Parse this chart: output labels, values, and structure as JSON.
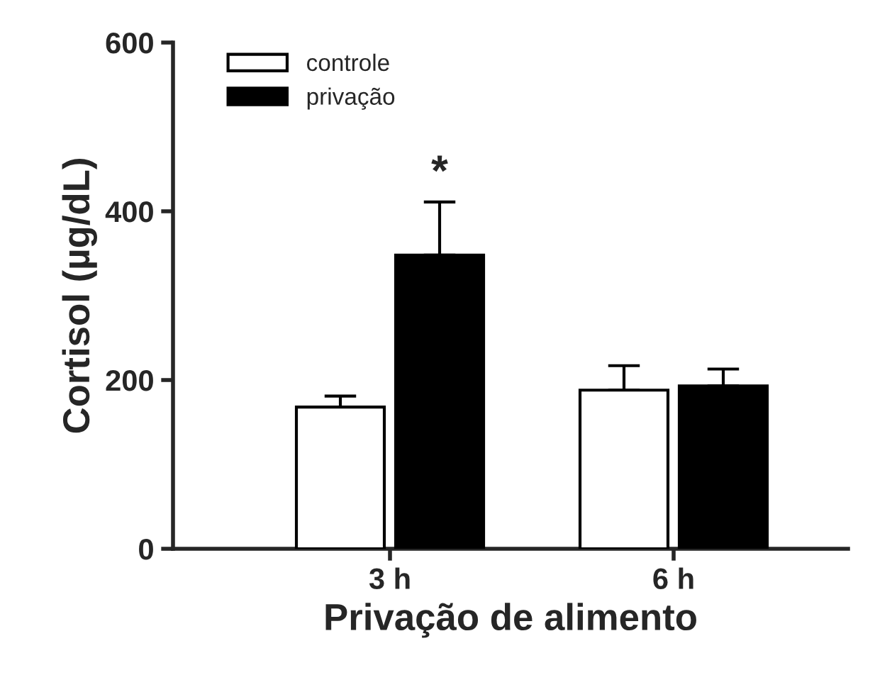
{
  "chart_data": {
    "type": "bar",
    "xlabel": "Privação de alimento",
    "ylabel": "Cortisol (µg/dL)",
    "categories": [
      "3 h",
      "6 h"
    ],
    "series": [
      {
        "name": "controle",
        "color": "#ffffff",
        "values": [
          168,
          188
        ],
        "errors": [
          [
            168,
            181
          ],
          [
            188,
            217
          ]
        ]
      },
      {
        "name": "privação",
        "color": "#000000",
        "values": [
          348,
          193
        ],
        "errors": [
          [
            348,
            411
          ],
          [
            193,
            213
          ]
        ]
      }
    ],
    "ylim": [
      0,
      600
    ],
    "yticks": [
      0,
      200,
      400,
      600
    ],
    "grid": false,
    "legend": "top left",
    "annotations": [
      "*"
    ]
  }
}
